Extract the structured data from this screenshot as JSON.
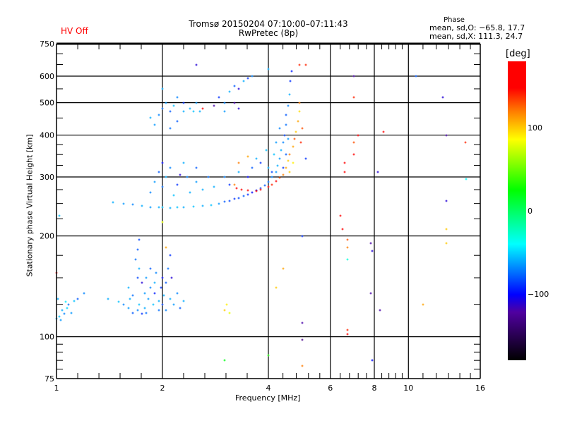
{
  "header": {
    "title_line1": "Tromsø 20150204 07:10:00–07:11:43",
    "title_line2": "RwPretec (8p)",
    "hv_status": "HV Off",
    "phase_heading": "Phase",
    "phase_o": "mean, sd,O: −65.8, 17.7",
    "phase_x": "mean, sd,X: 111.3, 24.7"
  },
  "colors": {
    "hv_status": "#ff0000",
    "axis": "#000000"
  },
  "chart_data": {
    "type": "scatter",
    "title": "Tromsø 20150204 07:10:00–07:11:43",
    "xlabel": "Frequency [MHz]",
    "ylabel": "Stationary phase Virtual Height [km]",
    "xscale": "log",
    "yscale": "log",
    "xlim": [
      1,
      16
    ],
    "ylim": [
      75,
      750
    ],
    "xticks": [
      1,
      2,
      4,
      6,
      8,
      10,
      16
    ],
    "xtick_labels": [
      "1",
      "2",
      "4",
      "6",
      "8",
      "10",
      "16"
    ],
    "yticks": [
      75,
      100,
      200,
      300,
      400,
      500,
      600,
      750
    ],
    "ytick_labels": [
      "75",
      "100",
      "200",
      "300",
      "400",
      "500",
      "600",
      "750"
    ],
    "xgrid": [
      2,
      4,
      6,
      8,
      10
    ],
    "ygrid": [
      100,
      200,
      300,
      400,
      500,
      600
    ],
    "colorbar": {
      "label": "[deg]",
      "range": [
        -180,
        180
      ],
      "ticks": [
        100,
        0,
        -100
      ],
      "tick_labels": [
        "100",
        "0",
        "−100"
      ],
      "stops": [
        [
          180,
          "#ff0000"
        ],
        [
          148,
          "#ff0000"
        ],
        [
          119,
          "#ff8000"
        ],
        [
          86,
          "#ffff00"
        ],
        [
          25,
          "#00ff00"
        ],
        [
          -40,
          "#00ffff"
        ],
        [
          -101,
          "#0000ff"
        ],
        [
          -122,
          "#5000a0"
        ],
        [
          -180,
          "#000000"
        ]
      ]
    },
    "point_fields": [
      "frequency_MHz",
      "height_km",
      "phase_deg"
    ],
    "points": [
      [
        1.0,
        113,
        -60
      ],
      [
        1.02,
        115,
        -55
      ],
      [
        1.03,
        112,
        -65
      ],
      [
        1.05,
        117,
        -70
      ],
      [
        1.04,
        120,
        -60
      ],
      [
        1.07,
        122,
        -50
      ],
      [
        1.08,
        125,
        -75
      ],
      [
        1.1,
        118,
        -65
      ],
      [
        1.12,
        128,
        -55
      ],
      [
        1.15,
        130,
        -80
      ],
      [
        1.06,
        127,
        -45
      ],
      [
        1.01,
        130,
        -60
      ],
      [
        1.2,
        135,
        -70
      ],
      [
        1.02,
        230,
        -55
      ],
      [
        1.0,
        155,
        150
      ],
      [
        1.4,
        130,
        -60
      ],
      [
        1.5,
        127,
        -55
      ],
      [
        1.55,
        125,
        -70
      ],
      [
        1.6,
        122,
        -65
      ],
      [
        1.62,
        130,
        -60
      ],
      [
        1.65,
        118,
        -80
      ],
      [
        1.7,
        120,
        -70
      ],
      [
        1.72,
        125,
        -55
      ],
      [
        1.75,
        117,
        -90
      ],
      [
        1.78,
        122,
        -60
      ],
      [
        1.8,
        118,
        -75
      ],
      [
        1.82,
        130,
        -65
      ],
      [
        1.85,
        140,
        -70
      ],
      [
        1.7,
        150,
        -85
      ],
      [
        1.72,
        160,
        -60
      ],
      [
        1.68,
        170,
        -75
      ],
      [
        1.7,
        182,
        -80
      ],
      [
        1.72,
        195,
        -85
      ],
      [
        1.75,
        145,
        -110
      ],
      [
        1.8,
        150,
        -65
      ],
      [
        1.85,
        160,
        -80
      ],
      [
        1.9,
        135,
        -95
      ],
      [
        1.9,
        145,
        -60
      ],
      [
        1.92,
        155,
        -70
      ],
      [
        1.95,
        120,
        -75
      ],
      [
        1.95,
        128,
        -60
      ],
      [
        1.98,
        140,
        -90
      ],
      [
        2.0,
        125,
        -85
      ],
      [
        2.0,
        150,
        -100
      ],
      [
        2.02,
        133,
        -60
      ],
      [
        2.05,
        120,
        -70
      ],
      [
        2.05,
        145,
        -80
      ],
      [
        2.08,
        160,
        -75
      ],
      [
        2.1,
        130,
        -60
      ],
      [
        2.1,
        175,
        -90
      ],
      [
        2.12,
        150,
        -110
      ],
      [
        2.15,
        125,
        -65
      ],
      [
        2.2,
        135,
        -70
      ],
      [
        2.25,
        122,
        -80
      ],
      [
        2.3,
        128,
        -60
      ],
      [
        2.05,
        185,
        110
      ],
      [
        1.88,
        125,
        -55
      ],
      [
        1.78,
        135,
        -65
      ],
      [
        1.6,
        140,
        -60
      ],
      [
        1.65,
        133,
        -75
      ],
      [
        1.45,
        252,
        -60
      ],
      [
        1.55,
        250,
        -65
      ],
      [
        1.65,
        248,
        -70
      ],
      [
        1.75,
        246,
        -60
      ],
      [
        1.85,
        244,
        -65
      ],
      [
        1.95,
        243,
        -60
      ],
      [
        2.0,
        243,
        -55
      ],
      [
        2.1,
        242,
        -60
      ],
      [
        2.2,
        243,
        -55
      ],
      [
        2.3,
        244,
        -60
      ],
      [
        2.45,
        245,
        -55
      ],
      [
        2.6,
        246,
        -60
      ],
      [
        2.75,
        247,
        -55
      ],
      [
        2.9,
        250,
        -65
      ],
      [
        3.0,
        253,
        -80
      ],
      [
        3.1,
        255,
        -85
      ],
      [
        3.2,
        258,
        -90
      ],
      [
        3.3,
        260,
        -85
      ],
      [
        3.4,
        263,
        -80
      ],
      [
        3.5,
        266,
        -90
      ],
      [
        3.6,
        270,
        -100
      ],
      [
        3.7,
        273,
        -95
      ],
      [
        3.8,
        278,
        -85
      ],
      [
        3.9,
        283,
        -80
      ],
      [
        4.0,
        290,
        -75
      ],
      [
        4.1,
        300,
        -70
      ],
      [
        4.2,
        310,
        -65
      ],
      [
        4.25,
        325,
        -60
      ],
      [
        4.3,
        340,
        -65
      ],
      [
        4.35,
        360,
        -60
      ],
      [
        4.4,
        380,
        -70
      ],
      [
        4.45,
        400,
        -85
      ],
      [
        4.5,
        430,
        -75
      ],
      [
        4.5,
        460,
        -80
      ],
      [
        4.55,
        490,
        -70
      ],
      [
        4.6,
        530,
        -60
      ],
      [
        4.62,
        580,
        -90
      ],
      [
        4.65,
        620,
        -95
      ],
      [
        4.0,
        630,
        -60
      ],
      [
        4.1,
        310,
        -85
      ],
      [
        4.15,
        350,
        -55
      ],
      [
        4.2,
        380,
        -65
      ],
      [
        4.3,
        420,
        -70
      ],
      [
        4.4,
        320,
        -90
      ],
      [
        4.5,
        350,
        -80
      ],
      [
        4.55,
        390,
        -65
      ],
      [
        4.0,
        320,
        -60
      ],
      [
        3.95,
        360,
        -55
      ],
      [
        3.8,
        330,
        -90
      ],
      [
        3.2,
        285,
        120
      ],
      [
        3.25,
        278,
        150
      ],
      [
        3.35,
        275,
        160
      ],
      [
        3.5,
        273,
        165
      ],
      [
        3.7,
        272,
        170
      ],
      [
        3.8,
        275,
        160
      ],
      [
        4.0,
        280,
        150
      ],
      [
        4.1,
        285,
        140
      ],
      [
        4.2,
        292,
        150
      ],
      [
        4.3,
        298,
        130
      ],
      [
        4.4,
        305,
        120
      ],
      [
        4.5,
        320,
        110
      ],
      [
        4.55,
        335,
        100
      ],
      [
        4.6,
        350,
        120
      ],
      [
        4.7,
        370,
        110
      ],
      [
        4.75,
        390,
        130
      ],
      [
        4.8,
        410,
        100
      ],
      [
        4.85,
        440,
        110
      ],
      [
        4.9,
        470,
        95
      ],
      [
        4.9,
        500,
        120
      ],
      [
        4.95,
        380,
        140
      ],
      [
        4.7,
        330,
        90
      ],
      [
        4.6,
        310,
        100
      ],
      [
        5.0,
        420,
        130
      ],
      [
        4.9,
        650,
        140
      ],
      [
        1.85,
        270,
        -70
      ],
      [
        1.9,
        290,
        -65
      ],
      [
        1.95,
        310,
        -80
      ],
      [
        2.0,
        330,
        -100
      ],
      [
        2.0,
        280,
        -75
      ],
      [
        2.05,
        300,
        -60
      ],
      [
        2.1,
        320,
        -70
      ],
      [
        2.15,
        265,
        -55
      ],
      [
        2.2,
        285,
        -90
      ],
      [
        2.25,
        305,
        -110
      ],
      [
        2.35,
        300,
        -70
      ],
      [
        2.4,
        270,
        -60
      ],
      [
        2.5,
        290,
        -65
      ],
      [
        2.5,
        320,
        -80
      ],
      [
        2.6,
        275,
        -60
      ],
      [
        2.7,
        300,
        -75
      ],
      [
        2.8,
        280,
        -60
      ],
      [
        3.0,
        300,
        -70
      ],
      [
        3.1,
        285,
        -90
      ],
      [
        3.3,
        310,
        -60
      ],
      [
        3.5,
        300,
        -100
      ],
      [
        3.6,
        320,
        -80
      ],
      [
        3.7,
        340,
        -60
      ],
      [
        3.3,
        330,
        120
      ],
      [
        3.5,
        345,
        110
      ],
      [
        2.3,
        330,
        -60
      ],
      [
        1.85,
        450,
        -60
      ],
      [
        1.9,
        430,
        -65
      ],
      [
        1.95,
        460,
        -70
      ],
      [
        2.0,
        550,
        -60
      ],
      [
        2.0,
        480,
        -75
      ],
      [
        2.05,
        500,
        -65
      ],
      [
        2.1,
        470,
        -80
      ],
      [
        2.15,
        490,
        -55
      ],
      [
        2.2,
        520,
        -70
      ],
      [
        2.3,
        500,
        -90
      ],
      [
        2.4,
        480,
        -60
      ],
      [
        2.45,
        470,
        -55
      ],
      [
        2.5,
        500,
        -65
      ],
      [
        2.55,
        470,
        -60
      ],
      [
        2.6,
        480,
        150
      ],
      [
        2.3,
        470,
        -60
      ],
      [
        2.2,
        440,
        -80
      ],
      [
        2.1,
        420,
        -75
      ],
      [
        2.8,
        490,
        -120
      ],
      [
        2.9,
        520,
        -90
      ],
      [
        3.0,
        500,
        -70
      ],
      [
        3.1,
        540,
        -60
      ],
      [
        3.2,
        560,
        -80
      ],
      [
        3.3,
        550,
        -110
      ],
      [
        3.4,
        580,
        -60
      ],
      [
        3.5,
        590,
        -90
      ],
      [
        3.6,
        600,
        -70
      ],
      [
        3.2,
        500,
        -120
      ],
      [
        3.3,
        480,
        -110
      ],
      [
        2.5,
        650,
        -110
      ],
      [
        3.0,
        470,
        -65
      ],
      [
        5.0,
        200,
        -90
      ],
      [
        5.0,
        110,
        -120
      ],
      [
        5.0,
        98,
        -130
      ],
      [
        5.0,
        82,
        120
      ],
      [
        5.1,
        650,
        140
      ],
      [
        6.4,
        230,
        150
      ],
      [
        6.5,
        210,
        160
      ],
      [
        6.6,
        330,
        160
      ],
      [
        6.6,
        310,
        170
      ],
      [
        6.7,
        195,
        130
      ],
      [
        6.7,
        185,
        120
      ],
      [
        6.7,
        170,
        -30
      ],
      [
        6.7,
        105,
        140
      ],
      [
        6.7,
        102,
        150
      ],
      [
        7.0,
        380,
        130
      ],
      [
        7.0,
        350,
        150
      ],
      [
        7.0,
        520,
        140
      ],
      [
        7.2,
        400,
        150
      ],
      [
        7.0,
        600,
        -120
      ],
      [
        7.8,
        190,
        -120
      ],
      [
        7.9,
        180,
        -110
      ],
      [
        7.8,
        135,
        -120
      ],
      [
        7.9,
        85,
        -100
      ],
      [
        8.2,
        310,
        -110
      ],
      [
        8.5,
        410,
        150
      ],
      [
        8.3,
        120,
        -120
      ],
      [
        10.5,
        600,
        -80
      ],
      [
        11.0,
        125,
        110
      ],
      [
        12.5,
        520,
        -110
      ],
      [
        12.8,
        400,
        -120
      ],
      [
        12.8,
        255,
        -110
      ],
      [
        12.8,
        210,
        100
      ],
      [
        12.8,
        190,
        100
      ],
      [
        14.5,
        380,
        140
      ],
      [
        14.6,
        295,
        -40
      ],
      [
        4.0,
        88,
        30
      ],
      [
        3.0,
        85,
        20
      ],
      [
        3.0,
        120,
        100
      ],
      [
        3.05,
        125,
        90
      ],
      [
        3.1,
        118,
        80
      ],
      [
        4.2,
        140,
        100
      ],
      [
        4.4,
        160,
        110
      ],
      [
        2.0,
        220,
        80
      ],
      [
        5.1,
        340,
        -90
      ]
    ]
  }
}
